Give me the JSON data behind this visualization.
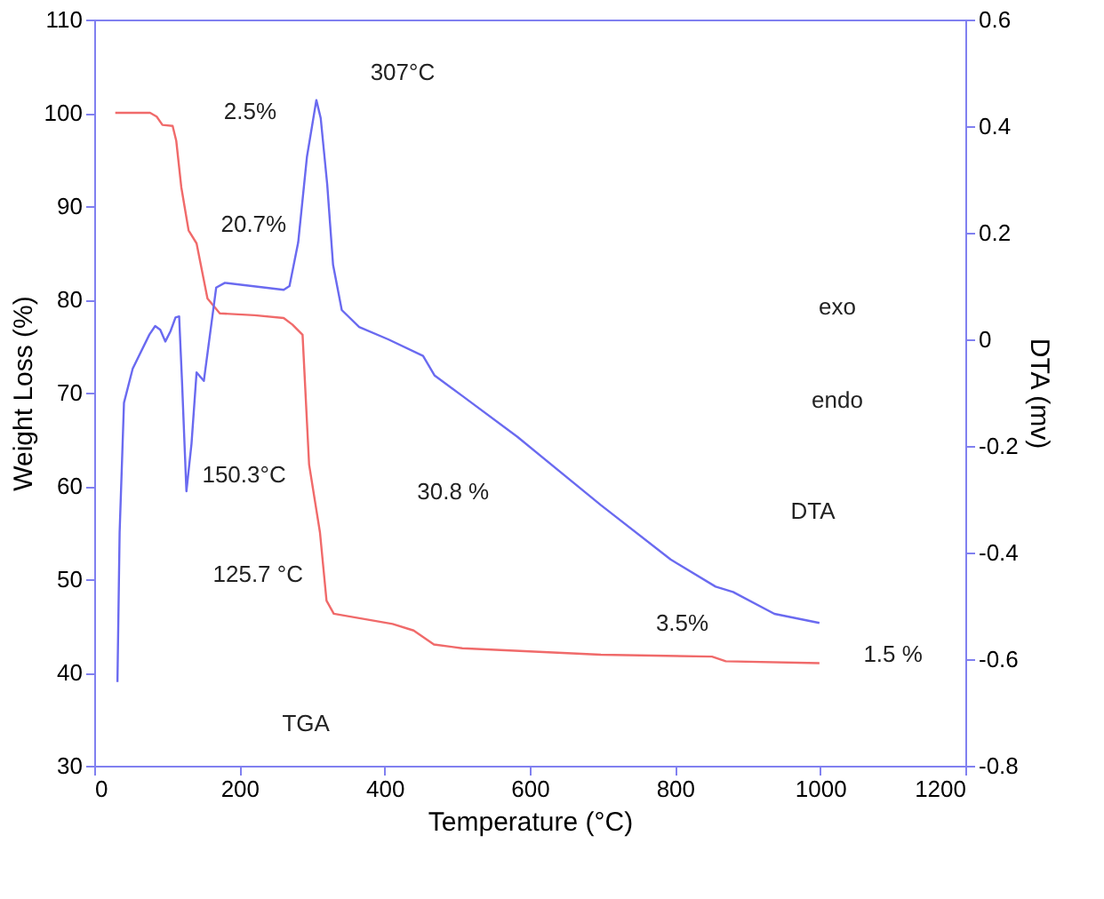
{
  "chart_data": {
    "type": "line",
    "xlabel": "Temperature (°C)",
    "ylabel": "Weight Loss (%)",
    "y2label": "DTA (mv)",
    "xlim": [
      0,
      1200
    ],
    "xticks": [
      0,
      200,
      400,
      600,
      800,
      1000,
      1200
    ],
    "ylim": [
      30,
      110
    ],
    "yticks": [
      30,
      40,
      50,
      60,
      70,
      80,
      90,
      100,
      110
    ],
    "y2lim": [
      -0.8,
      0.6
    ],
    "y2ticks": [
      -0.8,
      -0.6,
      -0.4,
      -0.2,
      0,
      0.2,
      0.4,
      0.6
    ],
    "grid": false,
    "series": [
      {
        "color": "#f06a6a",
        "x": [
          29,
          77,
          86,
          94,
          108,
          113,
          120,
          130,
          141,
          156,
          173,
          221,
          261,
          273,
          287,
          296,
          311,
          320,
          330,
          411,
          440,
          468,
          507,
          698,
          851,
          870,
          999
        ],
        "values": [
          100,
          100,
          99.6,
          98.7,
          98.6,
          97,
          92,
          87.4,
          86,
          80.1,
          78.5,
          78.3,
          78,
          77.3,
          76.2,
          62.3,
          55,
          47.7,
          46.3,
          45.2,
          44.5,
          43,
          42.6,
          41.9,
          41.7,
          41.2,
          41
        ]
      },
      {
        "color": "#6a6af0",
        "axis": "y2",
        "x": [
          32,
          35,
          41,
          53,
          76,
          84,
          91,
          98,
          105,
          112,
          117,
          121,
          127,
          134,
          141,
          151,
          168,
          180,
          261,
          269,
          281,
          293,
          306,
          312,
          321,
          329,
          341,
          365,
          405,
          453,
          469,
          507,
          583,
          698,
          794,
          856,
          880,
          937,
          999
        ],
        "values": [
          -0.643,
          -0.362,
          -0.119,
          -0.055,
          0.009,
          0.025,
          0.018,
          -0.004,
          0.015,
          0.041,
          0.043,
          -0.081,
          -0.285,
          -0.196,
          -0.062,
          -0.078,
          0.097,
          0.106,
          0.093,
          0.1,
          0.182,
          0.342,
          0.449,
          0.415,
          0.29,
          0.14,
          0.055,
          0.023,
          0.0,
          -0.031,
          -0.068,
          -0.106,
          -0.183,
          -0.311,
          -0.413,
          -0.464,
          -0.474,
          -0.515,
          -0.532
        ]
      }
    ],
    "annotations": [
      "307°C",
      "2.5%",
      "20.7%",
      "150.3°C",
      "125.7 °C",
      "30.8 %",
      "exo",
      "endo",
      "DTA",
      "TGA",
      "3.5%",
      "1.5 %"
    ]
  }
}
